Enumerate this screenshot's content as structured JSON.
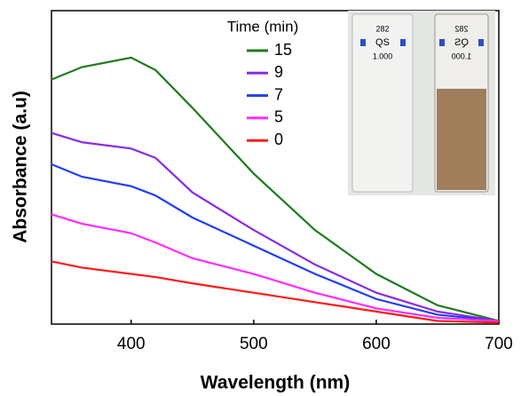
{
  "chart_data": {
    "type": "line",
    "x_label": "Wavelength (nm)",
    "y_label": "Absorbance (a.u)",
    "x": [
      335,
      360,
      400,
      420,
      450,
      500,
      550,
      600,
      650,
      700
    ],
    "series": [
      {
        "name": "15",
        "color": "#1e7b1e",
        "values": [
          0.78,
          0.82,
          0.85,
          0.81,
          0.69,
          0.48,
          0.3,
          0.16,
          0.06,
          0.01
        ]
      },
      {
        "name": "9",
        "color": "#8a2be2",
        "values": [
          0.61,
          0.58,
          0.56,
          0.53,
          0.42,
          0.3,
          0.19,
          0.1,
          0.04,
          0.01
        ]
      },
      {
        "name": "7",
        "color": "#1f3ff0",
        "values": [
          0.51,
          0.47,
          0.44,
          0.41,
          0.34,
          0.25,
          0.16,
          0.08,
          0.03,
          0.01
        ]
      },
      {
        "name": "5",
        "color": "#ff2bff",
        "values": [
          0.35,
          0.32,
          0.29,
          0.26,
          0.21,
          0.16,
          0.1,
          0.05,
          0.02,
          0.01
        ]
      },
      {
        "name": "0",
        "color": "#ff1a1a",
        "values": [
          0.2,
          0.18,
          0.16,
          0.15,
          0.13,
          0.1,
          0.07,
          0.04,
          0.01,
          0.005
        ]
      }
    ],
    "legend_title": "Time (min)",
    "xlim": [
      335,
      700
    ],
    "xticks": [
      400,
      500,
      600,
      700
    ],
    "ylim": [
      0,
      1
    ]
  },
  "inset": {
    "cuvettes": [
      {
        "lines": [
          "282",
          "QS",
          "1.000"
        ]
      },
      {
        "lines": [
          "282",
          "QS",
          "1.000"
        ]
      }
    ]
  }
}
